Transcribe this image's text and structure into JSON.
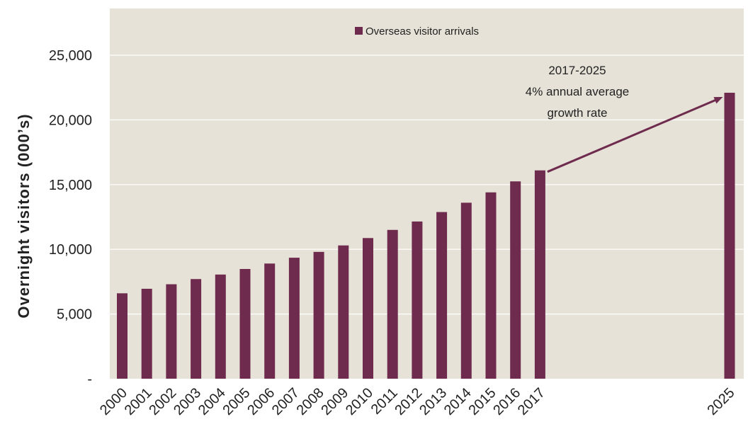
{
  "chart_data": {
    "type": "bar",
    "categories": [
      "2000",
      "2001",
      "2002",
      "2003",
      "2004",
      "2005",
      "2006",
      "2007",
      "2008",
      "2009",
      "2010",
      "2011",
      "2012",
      "2013",
      "2014",
      "2015",
      "2016",
      "2017",
      "2025"
    ],
    "series": [
      {
        "name": "Overseas visitor arrivals",
        "values": [
          6600,
          6950,
          7300,
          7700,
          8050,
          8480,
          8900,
          9350,
          9800,
          10300,
          10870,
          11500,
          12150,
          12880,
          13600,
          14400,
          15250,
          16100,
          22100
        ]
      }
    ],
    "ylabel": "Overnight visitors (000’s)",
    "xlabel": "",
    "ylim": [
      0,
      28000
    ],
    "yticks": [
      0,
      5000,
      10000,
      15000,
      20000,
      25000
    ],
    "ytick_labels": [
      "-",
      "5,000",
      "10,000",
      "15,000",
      "20,000",
      "25,000"
    ],
    "grid": true,
    "legend_position": "top-center",
    "annotation": {
      "lines": [
        "2017-2025",
        "4% annual average",
        "growth rate"
      ],
      "arrow_from": "2017",
      "arrow_to": "2025"
    },
    "colors": {
      "bar": "#6e2b4e",
      "plot_background": "#e7e2d8",
      "gridline": "#ffffff"
    }
  }
}
